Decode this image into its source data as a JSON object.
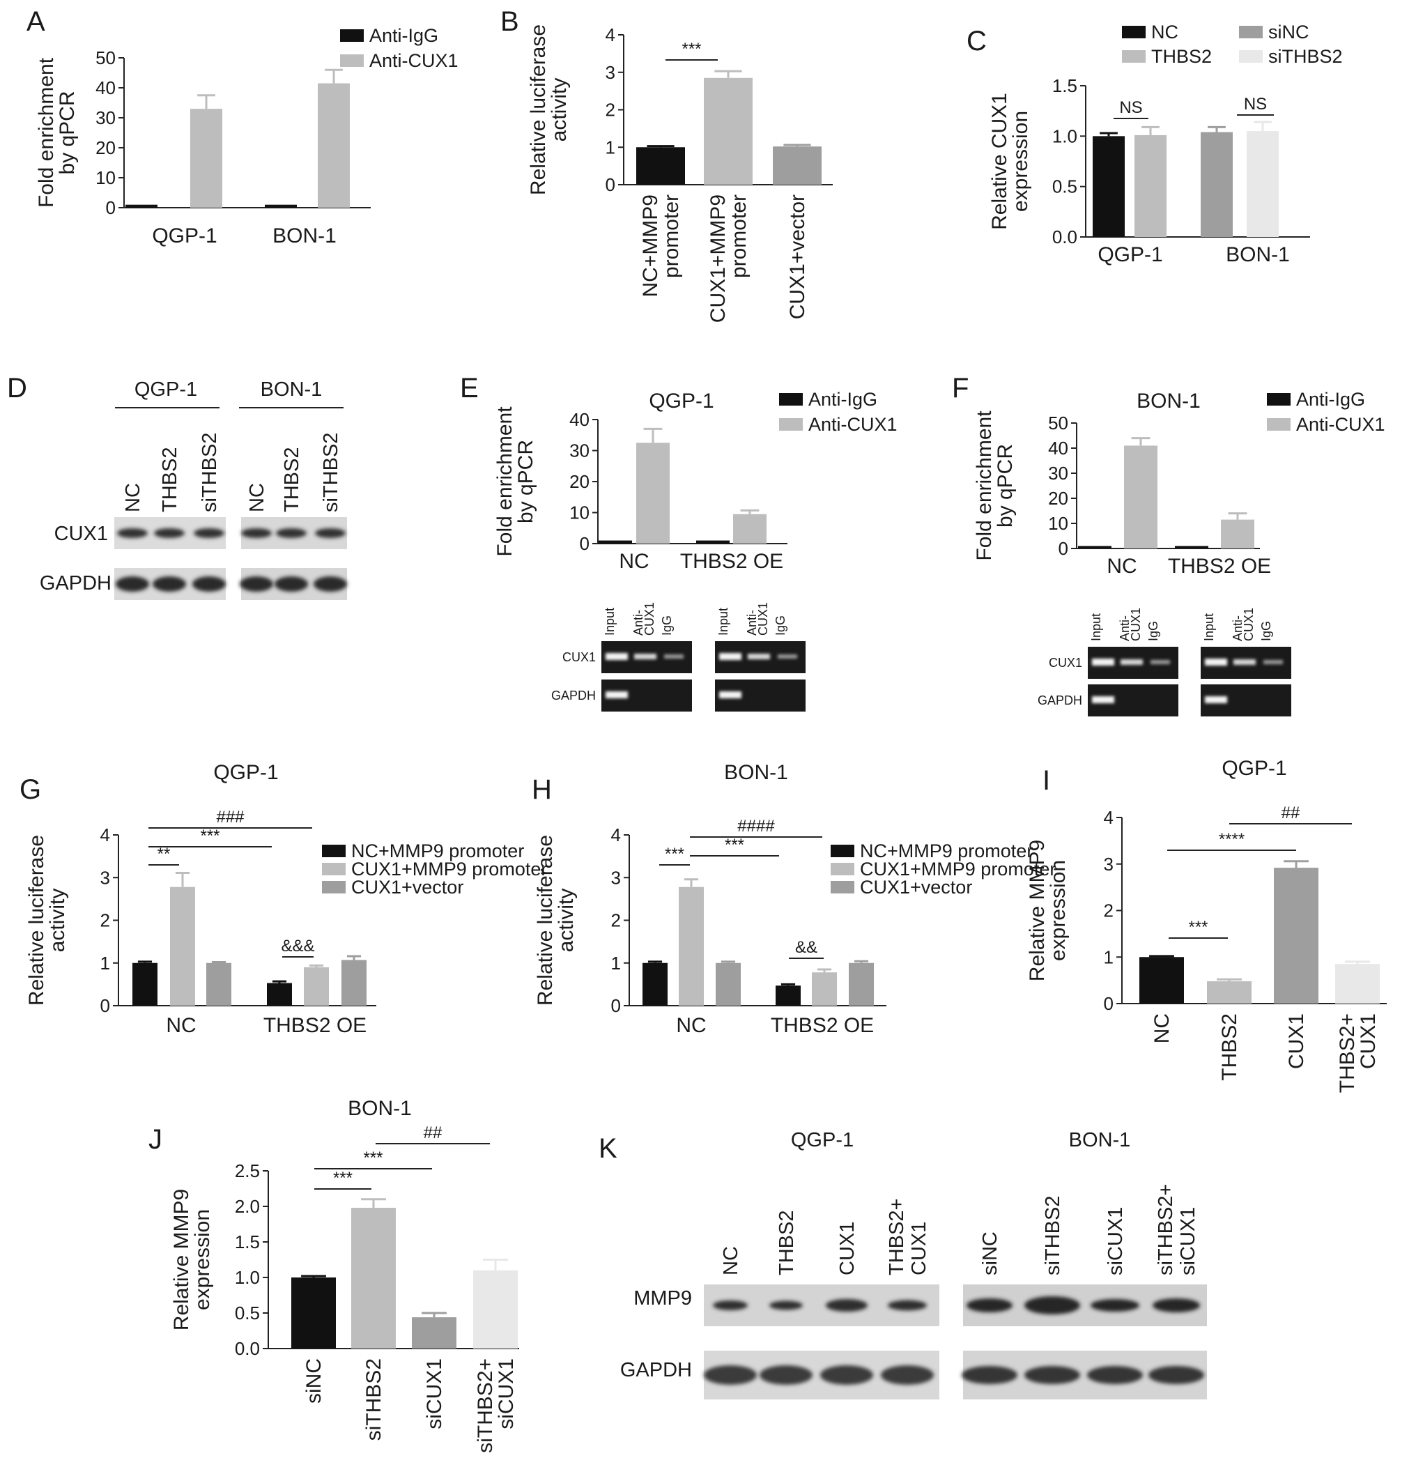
{
  "chart_data": [
    {
      "panel": "A",
      "type": "bar",
      "title": "",
      "categories": [
        "QGP-1",
        "BON-1"
      ],
      "ylabel": "Fold enrichment\nby qPCR",
      "ylim": [
        0,
        50
      ],
      "yticks": [
        "0",
        "10",
        "20",
        "30",
        "40",
        "50"
      ],
      "series": [
        {
          "name": "Anti-IgG",
          "color": "#111111",
          "values": [
            1,
            1
          ],
          "errors": [
            0,
            0
          ]
        },
        {
          "name": "Anti-CUX1",
          "color": "#bdbdbd",
          "values": [
            33,
            41.5
          ],
          "errors": [
            4.5,
            4.5
          ]
        }
      ],
      "legend": "top-right",
      "significance": []
    },
    {
      "panel": "B",
      "type": "bar",
      "title": "",
      "categories": [
        "NC+MMP9\npromoter",
        "CUX1+MMP9\npromoter",
        "CUX1+vector"
      ],
      "ylabel": "Relative luciferase\nactivity",
      "ylim": [
        0,
        4
      ],
      "yticks": [
        "0",
        "1",
        "2",
        "3",
        "4"
      ],
      "series": [
        {
          "name": "",
          "colors": [
            "#111111",
            "#bdbdbd",
            "#9e9e9e"
          ],
          "values": [
            1.0,
            2.85,
            1.02
          ],
          "errors": [
            0.03,
            0.18,
            0.04
          ]
        }
      ],
      "significance": [
        {
          "from": 0,
          "to": 1,
          "label": "***"
        }
      ]
    },
    {
      "panel": "C",
      "type": "bar",
      "title": "",
      "categories": [
        "QGP-1",
        "BON-1"
      ],
      "ylabel": "Relative CUX1\nexpression",
      "ylim": [
        0,
        1.5
      ],
      "yticks": [
        "0.0",
        "0.5",
        "1.0",
        "1.5"
      ],
      "series": [
        {
          "name": "NC",
          "color": "#111111",
          "values": [
            1.0,
            null
          ],
          "errors": [
            0.03,
            0
          ]
        },
        {
          "name": "THBS2",
          "color": "#bdbdbd",
          "values": [
            1.01,
            null
          ],
          "errors": [
            0.08,
            0
          ]
        },
        {
          "name": "siNC",
          "color": "#9e9e9e",
          "values": [
            null,
            1.04
          ],
          "errors": [
            0,
            0.05
          ]
        },
        {
          "name": "siTHBS2",
          "color": "#e8e8e8",
          "values": [
            null,
            1.05
          ],
          "errors": [
            0,
            0.09
          ]
        }
      ],
      "legend": "top",
      "significance": [
        {
          "label": "NS"
        },
        {
          "label": "NS"
        }
      ]
    },
    {
      "panel": "E",
      "type": "bar",
      "title": "QGP-1",
      "categories": [
        "NC",
        "THBS2 OE"
      ],
      "ylabel": "Fold enrichment\nby qPCR",
      "ylim": [
        0,
        40
      ],
      "yticks": [
        "0",
        "10",
        "20",
        "30",
        "40"
      ],
      "series": [
        {
          "name": "Anti-IgG",
          "color": "#111111",
          "values": [
            1,
            1
          ],
          "errors": [
            0,
            0
          ]
        },
        {
          "name": "Anti-CUX1",
          "color": "#bdbdbd",
          "values": [
            32.5,
            9.5
          ],
          "errors": [
            4.5,
            1.2
          ]
        }
      ],
      "legend": "top-right",
      "significance": []
    },
    {
      "panel": "F",
      "type": "bar",
      "title": "BON-1",
      "categories": [
        "NC",
        "THBS2 OE"
      ],
      "ylabel": "Fold enrichment\nby qPCR",
      "ylim": [
        0,
        50
      ],
      "yticks": [
        "0",
        "10",
        "20",
        "30",
        "40",
        "50"
      ],
      "series": [
        {
          "name": "Anti-IgG",
          "color": "#111111",
          "values": [
            1,
            1
          ],
          "errors": [
            0,
            0
          ]
        },
        {
          "name": "Anti-CUX1",
          "color": "#bdbdbd",
          "values": [
            41,
            11.5
          ],
          "errors": [
            3,
            2.5
          ]
        }
      ],
      "legend": "top-right",
      "significance": []
    },
    {
      "panel": "G",
      "type": "bar",
      "title": "QGP-1",
      "categories": [
        "NC",
        "THBS2 OE"
      ],
      "ylabel": "Relative luciferase\nactivity",
      "ylim": [
        0,
        4
      ],
      "yticks": [
        "0",
        "1",
        "2",
        "3",
        "4"
      ],
      "series": [
        {
          "name": "NC+MMP9 promoter",
          "color": "#111111",
          "values": [
            1.0,
            0.53
          ],
          "errors": [
            0.03,
            0.04
          ]
        },
        {
          "name": "CUX1+MMP9 promoter",
          "color": "#bdbdbd",
          "values": [
            2.78,
            0.9
          ],
          "errors": [
            0.33,
            0.04
          ]
        },
        {
          "name": "CUX1+vector",
          "color": "#9e9e9e",
          "values": [
            1.0,
            1.07
          ],
          "errors": [
            0.02,
            0.09
          ]
        }
      ],
      "legend": "right",
      "significance": [
        {
          "label": "**"
        },
        {
          "label": "***"
        },
        {
          "label": "###"
        },
        {
          "label": "&&&"
        }
      ]
    },
    {
      "panel": "H",
      "type": "bar",
      "title": "BON-1",
      "categories": [
        "NC",
        "THBS2 OE"
      ],
      "ylabel": "Relative luciferase\nactivity",
      "ylim": [
        0,
        4
      ],
      "yticks": [
        "0",
        "1",
        "2",
        "3",
        "4"
      ],
      "series": [
        {
          "name": "NC+MMP9 promoter",
          "color": "#111111",
          "values": [
            1.0,
            0.47
          ],
          "errors": [
            0.03,
            0.03
          ]
        },
        {
          "name": "CUX1+MMP9 promoter",
          "color": "#bdbdbd",
          "values": [
            2.78,
            0.78
          ],
          "errors": [
            0.18,
            0.07
          ]
        },
        {
          "name": "CUX1+vector",
          "color": "#9e9e9e",
          "values": [
            1.0,
            1.0
          ],
          "errors": [
            0.03,
            0.04
          ]
        }
      ],
      "legend": "right",
      "significance": [
        {
          "label": "***"
        },
        {
          "label": "***"
        },
        {
          "label": "####"
        },
        {
          "label": "&&"
        }
      ]
    },
    {
      "panel": "I",
      "type": "bar",
      "title": "QGP-1",
      "categories": [
        "NC",
        "THBS2",
        "CUX1",
        "THBS2+\nCUX1"
      ],
      "ylabel": "Relative MMP9\nexpression",
      "ylim": [
        0,
        4
      ],
      "yticks": [
        "0",
        "1",
        "2",
        "3",
        "4"
      ],
      "series": [
        {
          "name": "",
          "colors": [
            "#111111",
            "#bdbdbd",
            "#9e9e9e",
            "#e8e8e8"
          ],
          "values": [
            1.0,
            0.48,
            2.92,
            0.85
          ],
          "errors": [
            0.02,
            0.04,
            0.14,
            0.05
          ]
        }
      ],
      "significance": [
        {
          "label": "***"
        },
        {
          "label": "****"
        },
        {
          "label": "##"
        }
      ]
    },
    {
      "panel": "J",
      "type": "bar",
      "title": "BON-1",
      "categories": [
        "siNC",
        "siTHBS2",
        "siCUX1",
        "siTHBS2+\nsiCUX1"
      ],
      "ylabel": "Relative MMP9\nexpression",
      "ylim": [
        0,
        2.5
      ],
      "yticks": [
        "0.0",
        "0.5",
        "1.0",
        "1.5",
        "2.0",
        "2.5"
      ],
      "series": [
        {
          "name": "",
          "colors": [
            "#111111",
            "#bdbdbd",
            "#9e9e9e",
            "#e8e8e8"
          ],
          "values": [
            1.0,
            1.98,
            0.44,
            1.1
          ],
          "errors": [
            0.02,
            0.12,
            0.06,
            0.15
          ]
        }
      ],
      "significance": [
        {
          "label": "***"
        },
        {
          "label": "***"
        },
        {
          "label": "##"
        }
      ]
    }
  ],
  "blots": {
    "D": {
      "groups": [
        "QGP-1",
        "BON-1"
      ],
      "lanes": [
        "NC",
        "THBS2",
        "siTHBS2",
        "NC",
        "THBS2",
        "siTHBS2"
      ],
      "rows": [
        "CUX1",
        "GAPDH"
      ]
    },
    "E": {
      "lanes": [
        "Input",
        "Anti-\nCUX1",
        "IgG"
      ],
      "rows": [
        "CUX1",
        "GAPDH"
      ]
    },
    "F": {
      "lanes": [
        "Input",
        "Anti-\nCUX1",
        "IgG"
      ],
      "rows": [
        "CUX1",
        "GAPDH"
      ]
    },
    "K": {
      "groups": [
        "QGP-1",
        "BON-1"
      ],
      "lanes_left": [
        "NC",
        "THBS2",
        "CUX1",
        "THBS2+\nCUX1"
      ],
      "lanes_right": [
        "siNC",
        "siTHBS2",
        "siCUX1",
        "siTHBS2+\nsiCUX1"
      ],
      "rows": [
        "MMP9",
        "GAPDH"
      ]
    }
  },
  "panel_letters": [
    "A",
    "B",
    "C",
    "D",
    "E",
    "F",
    "G",
    "H",
    "I",
    "J",
    "K"
  ]
}
